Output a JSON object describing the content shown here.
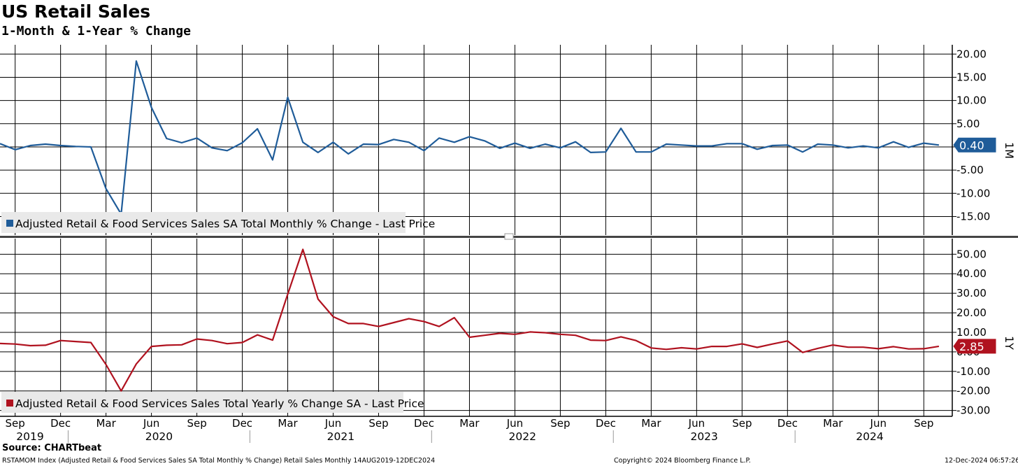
{
  "header": {
    "title": "US Retail Sales",
    "subtitle": "1-Month & 1-Year % Change"
  },
  "footer": {
    "source": "Source: CHARTbeat",
    "index_desc": "RSTAMOM Index (Adjusted Retail & Food Services Sales SA Total Monthly % Change) Retail Sales  Monthly 14AUG2019-12DEC2024",
    "copyright": "Copyright© 2024 Bloomberg Finance L.P.",
    "timestamp": "12-Dec-2024 06:57:26"
  },
  "colors": {
    "monthly": "#1f5c99",
    "yearly": "#b0121f",
    "grid": "#000000",
    "background": "#ffffff"
  },
  "chart_data": [
    {
      "type": "line",
      "panel": "1M",
      "series_name": "Adjusted Retail & Food Services Sales SA Total Monthly % Change - Last Price",
      "last_value_label": "0.40",
      "ylim": [
        -19,
        22
      ],
      "yticks": [
        20,
        15,
        10,
        5,
        0,
        -5,
        -10,
        -15
      ],
      "ytick_labels": [
        "20.00",
        "15.00",
        "10.00",
        "5.00",
        "",
        "-5.00",
        "-10.00",
        "-15.00"
      ],
      "x": [
        "2019-08",
        "2019-09",
        "2019-10",
        "2019-11",
        "2019-12",
        "2020-01",
        "2020-02",
        "2020-03",
        "2020-04",
        "2020-05",
        "2020-06",
        "2020-07",
        "2020-08",
        "2020-09",
        "2020-10",
        "2020-11",
        "2020-12",
        "2021-01",
        "2021-02",
        "2021-03",
        "2021-04",
        "2021-05",
        "2021-06",
        "2021-07",
        "2021-08",
        "2021-09",
        "2021-10",
        "2021-11",
        "2021-12",
        "2022-01",
        "2022-02",
        "2022-03",
        "2022-04",
        "2022-05",
        "2022-06",
        "2022-07",
        "2022-08",
        "2022-09",
        "2022-10",
        "2022-11",
        "2022-12",
        "2023-01",
        "2023-02",
        "2023-03",
        "2023-04",
        "2023-05",
        "2023-06",
        "2023-07",
        "2023-08",
        "2023-09",
        "2023-10",
        "2023-11",
        "2023-12",
        "2024-01",
        "2024-02",
        "2024-03",
        "2024-04",
        "2024-05",
        "2024-06",
        "2024-07",
        "2024-08",
        "2024-09",
        "2024-10"
      ],
      "values": [
        0.7,
        -0.6,
        0.3,
        0.6,
        0.3,
        0.1,
        0.0,
        -9.0,
        -14.5,
        18.5,
        8.5,
        1.8,
        0.9,
        1.9,
        -0.2,
        -0.8,
        0.9,
        3.9,
        -2.8,
        10.7,
        1.0,
        -1.2,
        1.0,
        -1.5,
        0.6,
        0.5,
        1.6,
        1.0,
        -0.8,
        1.9,
        1.0,
        2.2,
        1.3,
        -0.3,
        0.8,
        -0.3,
        0.6,
        -0.2,
        1.1,
        -1.2,
        -1.1,
        4.0,
        -1.1,
        -1.1,
        0.6,
        0.4,
        0.2,
        0.2,
        0.7,
        0.7,
        -0.5,
        0.3,
        0.4,
        -1.1,
        0.6,
        0.4,
        -0.2,
        0.2,
        -0.2,
        1.1,
        -0.1,
        0.8,
        0.4
      ]
    },
    {
      "type": "line",
      "panel": "1Y",
      "series_name": "Adjusted Retail & Food Services Sales Total Yearly % Change SA - Last Price",
      "last_value_label": "2.85",
      "ylim": [
        -33,
        58
      ],
      "yticks": [
        50,
        40,
        30,
        20,
        10,
        0,
        -10,
        -20,
        -30
      ],
      "ytick_labels": [
        "50.00",
        "40.00",
        "30.00",
        "20.00",
        "10.00",
        "0.00",
        "-10.00",
        "-20.00",
        "-30.00"
      ],
      "x": [
        "2019-08",
        "2019-09",
        "2019-10",
        "2019-11",
        "2019-12",
        "2020-01",
        "2020-02",
        "2020-03",
        "2020-04",
        "2020-05",
        "2020-06",
        "2020-07",
        "2020-08",
        "2020-09",
        "2020-10",
        "2020-11",
        "2020-12",
        "2021-01",
        "2021-02",
        "2021-03",
        "2021-04",
        "2021-05",
        "2021-06",
        "2021-07",
        "2021-08",
        "2021-09",
        "2021-10",
        "2021-11",
        "2021-12",
        "2022-01",
        "2022-02",
        "2022-03",
        "2022-04",
        "2022-05",
        "2022-06",
        "2022-07",
        "2022-08",
        "2022-09",
        "2022-10",
        "2022-11",
        "2022-12",
        "2023-01",
        "2023-02",
        "2023-03",
        "2023-04",
        "2023-05",
        "2023-06",
        "2023-07",
        "2023-08",
        "2023-09",
        "2023-10",
        "2023-11",
        "2023-12",
        "2024-01",
        "2024-02",
        "2024-03",
        "2024-04",
        "2024-05",
        "2024-06",
        "2024-07",
        "2024-08",
        "2024-09",
        "2024-10"
      ],
      "values": [
        4.3,
        4.0,
        3.2,
        3.4,
        5.8,
        5.3,
        4.8,
        -6.5,
        -20.0,
        -6.2,
        2.8,
        3.4,
        3.6,
        6.6,
        5.8,
        4.2,
        4.8,
        8.7,
        6.0,
        29.5,
        52.5,
        27.0,
        18.0,
        14.5,
        14.5,
        13.0,
        15.0,
        17.0,
        15.5,
        13.0,
        17.5,
        7.5,
        8.5,
        9.5,
        9.0,
        10.2,
        9.8,
        9.0,
        8.5,
        6.0,
        5.8,
        7.7,
        5.8,
        2.0,
        1.3,
        2.1,
        1.5,
        2.8,
        2.8,
        4.1,
        2.3,
        4.0,
        5.6,
        -0.3,
        1.8,
        3.5,
        2.4,
        2.4,
        1.6,
        2.7,
        1.5,
        1.6,
        2.85
      ]
    }
  ],
  "x_axis": {
    "month_ticks": [
      {
        "label": "Sep",
        "at": "2019-09"
      },
      {
        "label": "Dec",
        "at": "2019-12"
      },
      {
        "label": "Mar",
        "at": "2020-03"
      },
      {
        "label": "Jun",
        "at": "2020-06"
      },
      {
        "label": "Sep",
        "at": "2020-09"
      },
      {
        "label": "Dec",
        "at": "2020-12"
      },
      {
        "label": "Mar",
        "at": "2021-03"
      },
      {
        "label": "Jun",
        "at": "2021-06"
      },
      {
        "label": "Sep",
        "at": "2021-09"
      },
      {
        "label": "Dec",
        "at": "2021-12"
      },
      {
        "label": "Mar",
        "at": "2022-03"
      },
      {
        "label": "Jun",
        "at": "2022-06"
      },
      {
        "label": "Sep",
        "at": "2022-09"
      },
      {
        "label": "Dec",
        "at": "2022-12"
      },
      {
        "label": "Mar",
        "at": "2023-03"
      },
      {
        "label": "Jun",
        "at": "2023-06"
      },
      {
        "label": "Sep",
        "at": "2023-09"
      },
      {
        "label": "Dec",
        "at": "2023-12"
      },
      {
        "label": "Mar",
        "at": "2024-03"
      },
      {
        "label": "Jun",
        "at": "2024-06"
      },
      {
        "label": "Sep",
        "at": "2024-09"
      }
    ],
    "years": [
      {
        "label": "2019",
        "from": "2019-08",
        "to": "2019-12"
      },
      {
        "label": "2020",
        "from": "2020-01",
        "to": "2020-12"
      },
      {
        "label": "2021",
        "from": "2021-01",
        "to": "2021-12"
      },
      {
        "label": "2022",
        "from": "2022-01",
        "to": "2022-12"
      },
      {
        "label": "2023",
        "from": "2023-01",
        "to": "2023-12"
      },
      {
        "label": "2024",
        "from": "2024-01",
        "to": "2024-12"
      }
    ]
  }
}
